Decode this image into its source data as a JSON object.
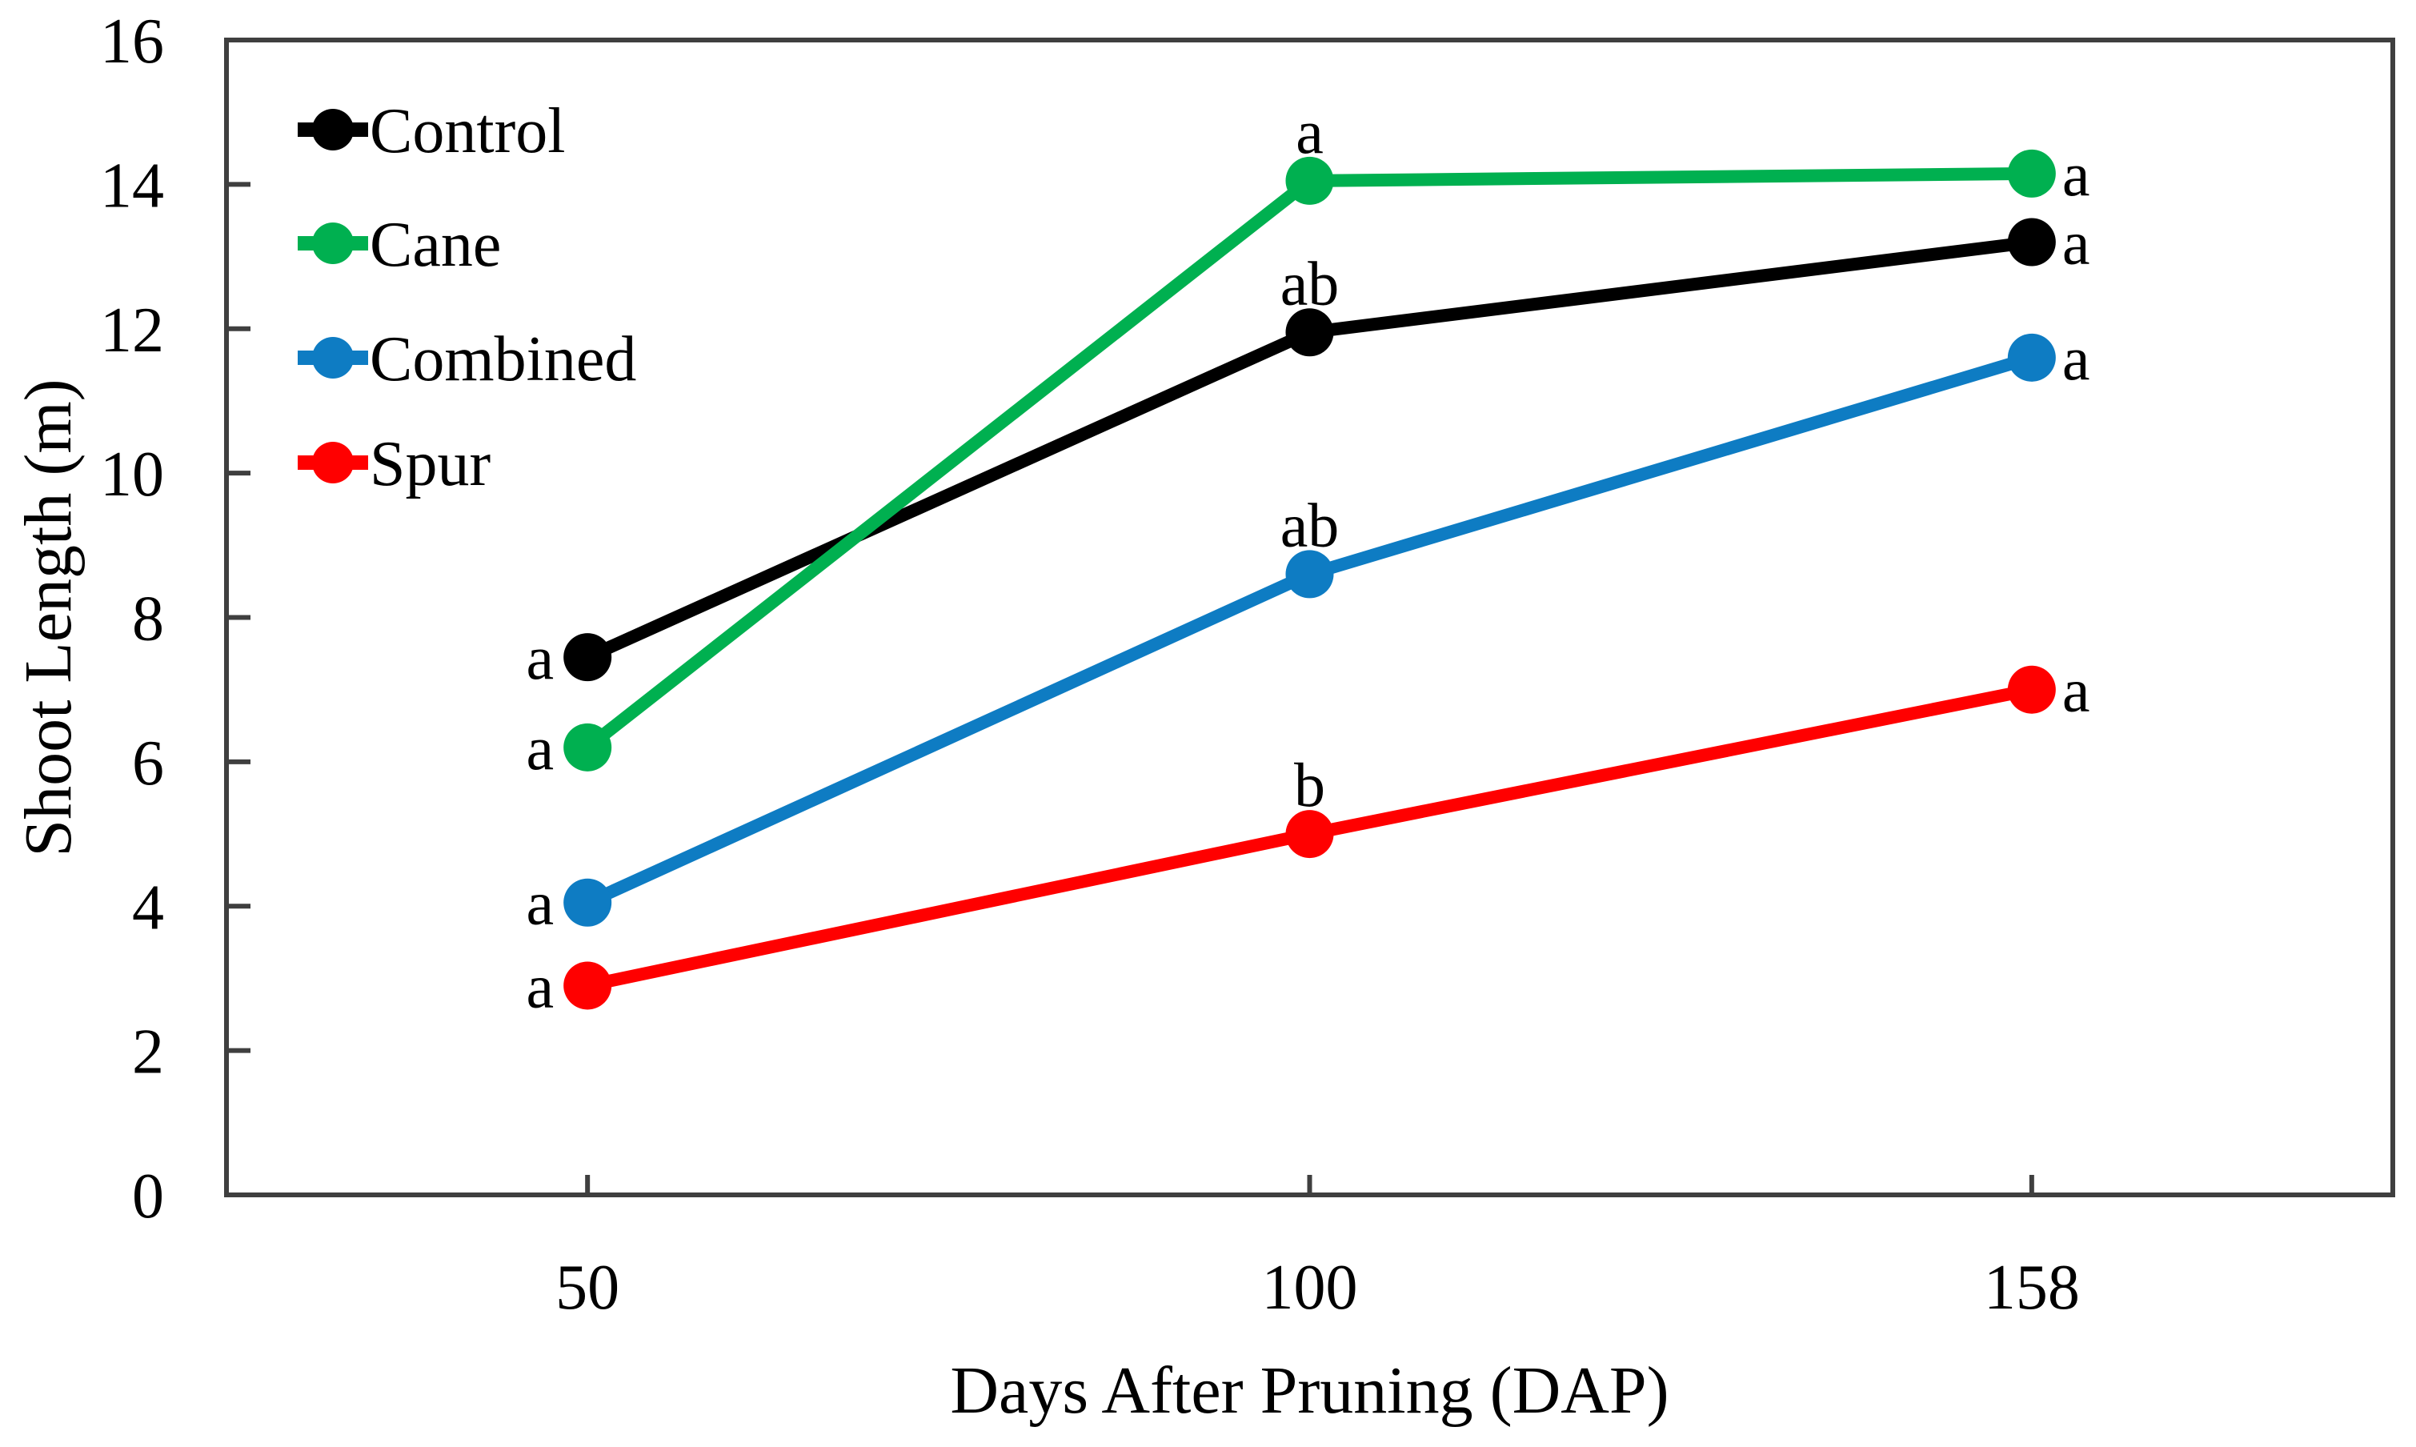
{
  "chart_data": {
    "type": "line",
    "title": "",
    "xlabel": "Days After Pruning (DAP)",
    "ylabel": "Shoot Length (m)",
    "x_categories": [
      "50",
      "100",
      "158"
    ],
    "y_ticks": [
      0,
      2,
      4,
      6,
      8,
      10,
      12,
      14,
      16
    ],
    "ylim": [
      0,
      16
    ],
    "grid": false,
    "legend_position": "top-left-inside",
    "axis_color": "#3F3F3F",
    "background_color": "#FFFFFF",
    "annotation_placement": [
      "left",
      "above",
      "right"
    ],
    "series": [
      {
        "name": "Control",
        "color": "#000000",
        "values": [
          7.45,
          11.95,
          13.2
        ],
        "sig_letters": [
          "a",
          "ab",
          "a"
        ]
      },
      {
        "name": "Cane",
        "color": "#00B050",
        "values": [
          6.2,
          14.05,
          14.15
        ],
        "sig_letters": [
          "a",
          "a",
          "a"
        ]
      },
      {
        "name": "Combined",
        "color": "#0E7CC3",
        "values": [
          4.05,
          8.6,
          11.6
        ],
        "sig_letters": [
          "a",
          "ab",
          "a"
        ]
      },
      {
        "name": "Spur",
        "color": "#FF0000",
        "values": [
          2.9,
          5.0,
          7.0
        ],
        "sig_letters": [
          "a",
          "b",
          "a"
        ]
      }
    ]
  }
}
